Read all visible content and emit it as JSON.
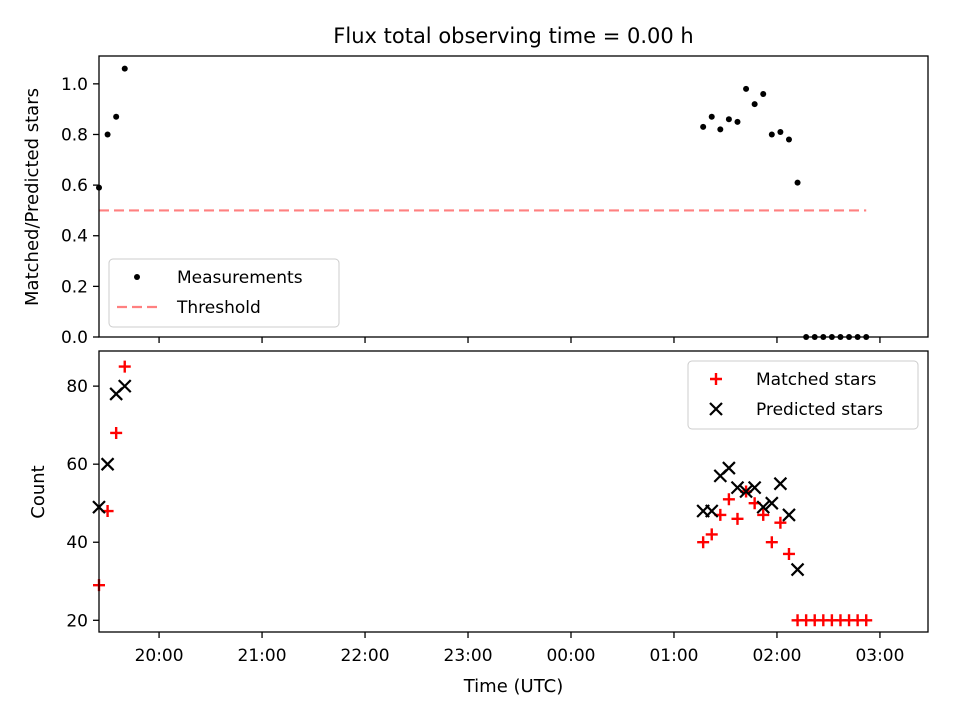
{
  "chart_data": [
    {
      "type": "scatter",
      "title": "Flux total observing time = 0.00 h",
      "xlabel": "",
      "ylabel": "Matched/Predicted stars",
      "x_tick_labels": [
        "20:00",
        "21:00",
        "22:00",
        "23:00",
        "00:00",
        "01:00",
        "02:00",
        "03:00"
      ],
      "y_tick_labels": [
        "0.0",
        "0.2",
        "0.4",
        "0.6",
        "0.8",
        "1.0"
      ],
      "x_range": [
        "19:25",
        "03:28"
      ],
      "ylim": [
        0.0,
        1.11
      ],
      "legend_position": "lower-left",
      "series": [
        {
          "name": "Measurements",
          "marker": "dot",
          "color": "#000000",
          "points": [
            [
              "19:25",
              0.59
            ],
            [
              "19:30",
              0.8
            ],
            [
              "19:35",
              0.87
            ],
            [
              "19:40",
              1.06
            ],
            [
              "01:17",
              0.83
            ],
            [
              "01:22",
              0.87
            ],
            [
              "01:27",
              0.82
            ],
            [
              "01:32",
              0.86
            ],
            [
              "01:37",
              0.85
            ],
            [
              "01:42",
              0.98
            ],
            [
              "01:47",
              0.92
            ],
            [
              "01:52",
              0.96
            ],
            [
              "01:57",
              0.8
            ],
            [
              "02:02",
              0.81
            ],
            [
              "02:07",
              0.78
            ],
            [
              "02:12",
              0.61
            ],
            [
              "02:17",
              0.0
            ],
            [
              "02:22",
              0.0
            ],
            [
              "02:27",
              0.0
            ],
            [
              "02:32",
              0.0
            ],
            [
              "02:37",
              0.0
            ],
            [
              "02:42",
              0.0
            ],
            [
              "02:47",
              0.0
            ],
            [
              "02:52",
              0.0
            ]
          ]
        },
        {
          "name": "Threshold",
          "marker": "dashed-line",
          "color": "#ff8080",
          "points": [
            [
              "19:25",
              0.5
            ],
            [
              "02:52",
              0.5
            ]
          ]
        }
      ]
    },
    {
      "type": "scatter",
      "title": "",
      "xlabel": "Time (UTC)",
      "ylabel": "Count",
      "x_tick_labels": [
        "20:00",
        "21:00",
        "22:00",
        "23:00",
        "00:00",
        "01:00",
        "02:00",
        "03:00"
      ],
      "y_tick_labels": [
        "20",
        "40",
        "60",
        "80"
      ],
      "x_range": [
        "19:25",
        "03:28"
      ],
      "ylim": [
        17,
        89
      ],
      "legend_position": "upper-right",
      "series": [
        {
          "name": "Matched stars",
          "marker": "plus",
          "color": "#ff0000",
          "points": [
            [
              "19:25",
              29
            ],
            [
              "19:30",
              48
            ],
            [
              "19:35",
              68
            ],
            [
              "19:40",
              85
            ],
            [
              "01:17",
              40
            ],
            [
              "01:22",
              42
            ],
            [
              "01:27",
              47
            ],
            [
              "01:32",
              51
            ],
            [
              "01:37",
              46
            ],
            [
              "01:42",
              53
            ],
            [
              "01:47",
              50
            ],
            [
              "01:52",
              47
            ],
            [
              "01:57",
              40
            ],
            [
              "02:02",
              45
            ],
            [
              "02:07",
              37
            ],
            [
              "02:12",
              20
            ],
            [
              "02:17",
              20
            ],
            [
              "02:22",
              20
            ],
            [
              "02:27",
              20
            ],
            [
              "02:32",
              20
            ],
            [
              "02:37",
              20
            ],
            [
              "02:42",
              20
            ],
            [
              "02:47",
              20
            ],
            [
              "02:52",
              20
            ]
          ]
        },
        {
          "name": "Predicted stars",
          "marker": "x",
          "color": "#000000",
          "points": [
            [
              "19:25",
              49
            ],
            [
              "19:30",
              60
            ],
            [
              "19:35",
              78
            ],
            [
              "19:40",
              80
            ],
            [
              "01:17",
              48
            ],
            [
              "01:22",
              48
            ],
            [
              "01:27",
              57
            ],
            [
              "01:32",
              59
            ],
            [
              "01:37",
              54
            ],
            [
              "01:42",
              53
            ],
            [
              "01:47",
              54
            ],
            [
              "01:52",
              49
            ],
            [
              "01:57",
              50
            ],
            [
              "02:02",
              55
            ],
            [
              "02:07",
              47
            ],
            [
              "02:12",
              33
            ]
          ]
        }
      ]
    }
  ]
}
